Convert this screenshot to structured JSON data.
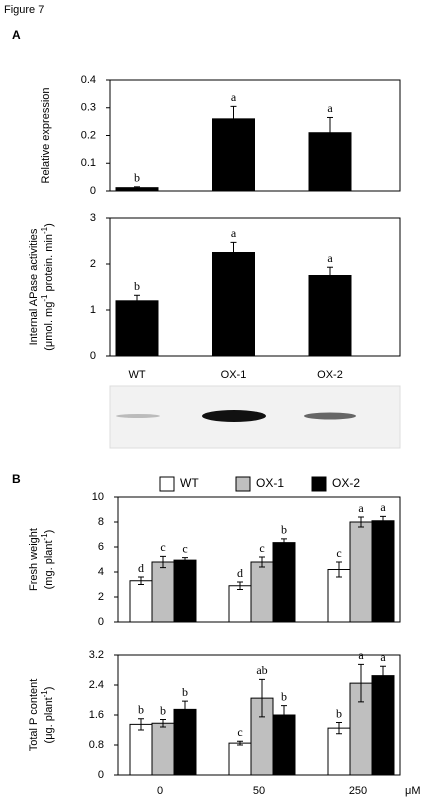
{
  "figure_label": "Figure 7",
  "panels": [
    "A",
    "B"
  ],
  "chart_data": [
    {
      "type": "bar",
      "y_label": [
        "Relative expression"
      ],
      "values": [
        0.012,
        0.26,
        0.21
      ],
      "errors": [
        0.003,
        0.045,
        0.055
      ],
      "letters": [
        "b",
        "a",
        "a"
      ],
      "color": "#000000",
      "ylim": [
        0,
        0.4
      ],
      "yticks": [
        0,
        0.1,
        0.2,
        0.3,
        0.4
      ]
    },
    {
      "type": "bar",
      "y_label": [
        [
          "Internal APase activities"
        ],
        [
          "(μmol. mg",
          "-1",
          " protein. min",
          "-1",
          ")"
        ]
      ],
      "categories": [
        "WT",
        "OX-1",
        "OX-2"
      ],
      "values": [
        1.2,
        2.25,
        1.75
      ],
      "errors": [
        0.12,
        0.22,
        0.18
      ],
      "letters": [
        "b",
        "a",
        "a"
      ],
      "color": "#000000",
      "ylim": [
        0,
        3
      ],
      "yticks": [
        0,
        1,
        2,
        3
      ]
    },
    {
      "type": "grouped_bar",
      "y_label": [
        [
          "Fresh weight"
        ],
        [
          "(mg. plant",
          "-1",
          ")"
        ]
      ],
      "series": [
        {
          "name": "WT",
          "color": "#ffffff",
          "values": [
            3.3,
            2.9,
            4.2
          ],
          "errors": [
            0.3,
            0.3,
            0.6
          ],
          "letters": [
            "d",
            "d",
            "c"
          ]
        },
        {
          "name": "OX-1",
          "color": "#bfbfbf",
          "values": [
            4.8,
            4.8,
            8.0
          ],
          "errors": [
            0.45,
            0.4,
            0.4
          ],
          "letters": [
            "c",
            "c",
            "a"
          ]
        },
        {
          "name": "OX-2",
          "color": "#000000",
          "values": [
            4.95,
            6.35,
            8.1
          ],
          "errors": [
            0.2,
            0.3,
            0.35
          ],
          "letters": [
            "c",
            "b",
            "a"
          ]
        }
      ],
      "ylim": [
        0,
        10
      ],
      "yticks": [
        0,
        2,
        4,
        6,
        8,
        10
      ]
    },
    {
      "type": "grouped_bar",
      "y_label": [
        [
          "Total P content"
        ],
        [
          "(μg. plant",
          "-1",
          ")"
        ]
      ],
      "categories": [
        "0",
        "50",
        "250"
      ],
      "unit": "μM",
      "series": [
        {
          "color": "#ffffff",
          "values": [
            1.35,
            0.85,
            1.25
          ],
          "errors": [
            0.15,
            0.05,
            0.15
          ],
          "letters": [
            "b",
            "c",
            "b"
          ]
        },
        {
          "color": "#bfbfbf",
          "values": [
            1.38,
            2.05,
            2.45
          ],
          "errors": [
            0.1,
            0.5,
            0.5
          ],
          "letters": [
            "b",
            "ab",
            "a"
          ]
        },
        {
          "color": "#000000",
          "values": [
            1.75,
            1.6,
            2.65
          ],
          "errors": [
            0.22,
            0.25,
            0.25
          ],
          "letters": [
            "b",
            "b",
            "a"
          ]
        }
      ],
      "ylim": [
        0,
        3.2
      ],
      "yticks": [
        0,
        0.8,
        1.6,
        2.4,
        3.2
      ]
    }
  ]
}
